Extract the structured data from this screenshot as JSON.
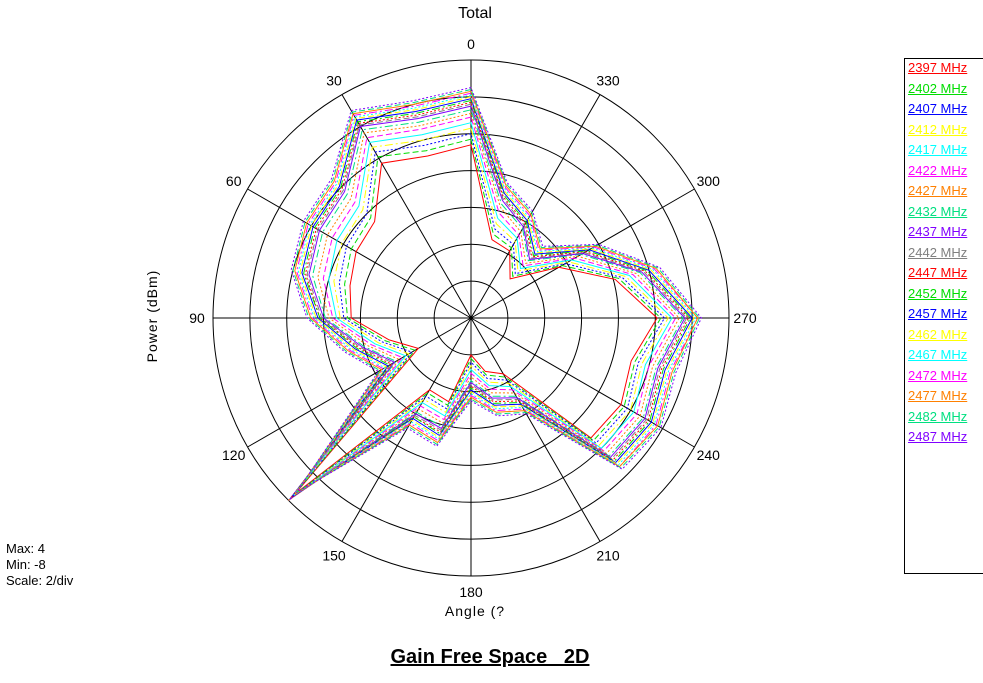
{
  "chart_data": {
    "type": "polar",
    "title": "Total",
    "xlabel": "Angle (?",
    "ylabel": "Power (dBm)",
    "rlim": [
      -8,
      4
    ],
    "r_scale_per_div": 2,
    "angle_direction": "counter-clockwise, 0 at top",
    "angle_ticks": [
      "0",
      "30",
      "60",
      "90",
      "120",
      "150",
      "180",
      "210",
      "240",
      "270",
      "300",
      "330"
    ],
    "grid": true,
    "legend_position": "right",
    "stats": {
      "max": "Max: 4",
      "min": "Min: -8",
      "scale": "Scale: 2/div"
    },
    "angles": [
      0,
      15,
      30,
      45,
      60,
      75,
      90,
      105,
      120,
      135,
      150,
      165,
      180,
      195,
      210,
      225,
      240,
      255,
      270,
      285,
      300,
      315,
      330,
      345
    ],
    "series": [
      {
        "name": "2397 MHz",
        "color": "#ff0000",
        "values": [
          -0.6,
          -0.9,
          -0.3,
          -2.6,
          -2.8,
          -3.2,
          -3.5,
          -5.4,
          -6.7,
          3.5,
          -5.5,
          -5.3,
          -8,
          -7,
          -6.5,
          -0.8,
          -0.6,
          -1.0,
          0.1,
          -1.9,
          -4.5,
          -7,
          -5.8,
          -5.6
        ]
      },
      {
        "name": "2402 MHz",
        "color": "#00dd00",
        "values": [
          -0.3,
          -0.6,
          0.1,
          -2.3,
          -2.5,
          -2.9,
          -3.3,
          -5.2,
          -6.5,
          3.7,
          -5.3,
          -5.1,
          -7.8,
          -6.8,
          -6.3,
          -0.6,
          -0.4,
          -0.8,
          0.3,
          -1.7,
          -4.3,
          -6.8,
          -5.6,
          -5.3
        ]
      },
      {
        "name": "2407 MHz",
        "color": "#0000ff",
        "values": [
          0.0,
          -0.3,
          0.4,
          -2.0,
          -2.2,
          -2.6,
          -3.1,
          -5.0,
          -6.3,
          3.8,
          -5.1,
          -4.9,
          -7.6,
          -6.6,
          -6.1,
          -0.4,
          -0.2,
          -0.6,
          0.5,
          -1.5,
          -4.1,
          -6.6,
          -5.4,
          -5.0
        ]
      },
      {
        "name": "2412 MHz",
        "color": "#ffff00",
        "values": [
          0.3,
          0.0,
          0.7,
          -1.7,
          -1.9,
          -2.3,
          -2.9,
          -4.8,
          -6.1,
          3.9,
          -4.9,
          -4.7,
          -7.4,
          -6.4,
          -5.9,
          -0.2,
          0.0,
          -0.4,
          0.7,
          -1.3,
          -3.9,
          -6.4,
          -5.2,
          -4.7
        ]
      },
      {
        "name": "2417 MHz",
        "color": "#00ffff",
        "values": [
          0.6,
          0.3,
          1.0,
          -1.4,
          -1.6,
          -2.0,
          -2.7,
          -4.6,
          -5.9,
          4.0,
          -4.7,
          -4.5,
          -7.2,
          -6.2,
          -5.7,
          0.0,
          0.2,
          -0.2,
          0.9,
          -1.1,
          -3.7,
          -6.2,
          -5.0,
          -4.4
        ]
      },
      {
        "name": "2422 MHz",
        "color": "#ff00ff",
        "values": [
          0.9,
          0.6,
          1.3,
          -1.1,
          -1.3,
          -1.7,
          -2.5,
          -4.4,
          -5.7,
          4.0,
          -4.5,
          -4.3,
          -7.0,
          -6.0,
          -5.5,
          0.2,
          0.4,
          0.0,
          1.1,
          -0.9,
          -3.5,
          -6.0,
          -4.8,
          -4.1
        ]
      },
      {
        "name": "2427 MHz",
        "color": "#ff8000",
        "values": [
          1.1,
          0.8,
          1.6,
          -0.8,
          -1.0,
          -1.4,
          -2.3,
          -4.2,
          -5.5,
          4.0,
          -4.3,
          -4.1,
          -6.8,
          -5.8,
          -5.3,
          0.4,
          0.6,
          0.2,
          1.3,
          -0.7,
          -3.3,
          -5.8,
          -4.6,
          -3.8
        ]
      },
      {
        "name": "2432 MHz",
        "color": "#00e080",
        "values": [
          1.3,
          1.0,
          1.8,
          -0.5,
          -0.7,
          -1.1,
          -2.1,
          -4.0,
          -5.3,
          3.9,
          -4.1,
          -3.9,
          -6.6,
          -5.6,
          -5.1,
          0.6,
          0.8,
          0.4,
          1.5,
          -0.5,
          -3.1,
          -5.6,
          -4.4,
          -3.6
        ]
      },
      {
        "name": "2437 MHz",
        "color": "#8000ff",
        "values": [
          1.5,
          1.2,
          2.0,
          -0.3,
          -0.5,
          -0.9,
          -2.0,
          -3.9,
          -5.2,
          3.9,
          -4.0,
          -3.8,
          -6.5,
          -5.5,
          -5.0,
          0.7,
          0.9,
          0.5,
          1.6,
          -0.4,
          -3.0,
          -5.5,
          -4.3,
          -3.4
        ]
      },
      {
        "name": "2442 MHz",
        "color": "#808080",
        "values": [
          1.6,
          1.3,
          2.1,
          -0.2,
          -0.4,
          -0.8,
          -1.9,
          -3.8,
          -5.1,
          3.8,
          -3.9,
          -3.7,
          -6.4,
          -5.4,
          -4.9,
          0.8,
          1.0,
          0.6,
          1.7,
          -0.3,
          -2.9,
          -5.4,
          -4.2,
          -3.3
        ]
      },
      {
        "name": "2447 MHz",
        "color": "#ff0000",
        "values": [
          1.7,
          1.4,
          2.2,
          -0.1,
          -0.3,
          -0.7,
          -1.8,
          -3.7,
          -5.0,
          3.8,
          -3.8,
          -3.6,
          -6.3,
          -5.3,
          -4.8,
          0.9,
          1.1,
          0.7,
          1.8,
          -0.2,
          -2.8,
          -5.3,
          -4.1,
          -3.2
        ]
      },
      {
        "name": "2452 MHz",
        "color": "#00dd00",
        "values": [
          1.8,
          1.5,
          2.3,
          0.0,
          -0.2,
          -0.6,
          -1.8,
          -3.6,
          -4.9,
          3.7,
          -3.8,
          -3.5,
          -6.2,
          -5.2,
          -4.7,
          1.0,
          1.2,
          0.8,
          1.9,
          -0.1,
          -2.7,
          -5.2,
          -4.0,
          -3.1
        ]
      },
      {
        "name": "2457 MHz",
        "color": "#0000ff",
        "values": [
          1.9,
          1.6,
          2.4,
          0.1,
          -0.1,
          -0.5,
          -1.7,
          -3.5,
          -4.8,
          3.7,
          -3.7,
          -3.4,
          -6.1,
          -5.1,
          -4.6,
          1.1,
          1.3,
          0.9,
          2.0,
          0.0,
          -2.6,
          -5.1,
          -3.9,
          -3.0
        ]
      },
      {
        "name": "2462 MHz",
        "color": "#ffff00",
        "values": [
          2.0,
          1.7,
          2.5,
          0.2,
          0.0,
          -0.4,
          -1.6,
          -3.4,
          -4.7,
          3.6,
          -3.6,
          -3.3,
          -6.0,
          -5.0,
          -4.5,
          1.2,
          1.4,
          1.0,
          2.1,
          0.1,
          -2.5,
          -5.0,
          -3.8,
          -2.9
        ]
      },
      {
        "name": "2467 MHz",
        "color": "#00ffff",
        "values": [
          2.1,
          1.8,
          2.6,
          0.3,
          0.1,
          -0.3,
          -1.5,
          -3.3,
          -4.6,
          3.6,
          -3.5,
          -3.2,
          -5.9,
          -4.9,
          -4.4,
          1.3,
          1.5,
          1.1,
          2.2,
          0.2,
          -2.4,
          -4.9,
          -3.7,
          -2.8
        ]
      },
      {
        "name": "2472 MHz",
        "color": "#ff00ff",
        "values": [
          2.2,
          1.9,
          2.7,
          0.4,
          0.2,
          -0.2,
          -1.4,
          -3.2,
          -4.5,
          3.5,
          -3.4,
          -3.1,
          -5.8,
          -4.8,
          -4.3,
          1.4,
          1.6,
          1.2,
          2.3,
          0.3,
          -2.3,
          -4.8,
          -3.6,
          -2.7
        ]
      },
      {
        "name": "2477 MHz",
        "color": "#ff8000",
        "values": [
          2.3,
          2.0,
          2.8,
          0.5,
          0.3,
          -0.1,
          -1.3,
          -3.1,
          -4.4,
          3.5,
          -3.3,
          -3.0,
          -5.7,
          -4.7,
          -4.2,
          1.4,
          1.7,
          1.3,
          2.3,
          0.4,
          -2.2,
          -4.7,
          -3.5,
          -2.6
        ]
      },
      {
        "name": "2482 MHz",
        "color": "#00e080",
        "values": [
          2.4,
          2.1,
          2.9,
          0.6,
          0.4,
          0.0,
          -1.2,
          -3.0,
          -4.3,
          3.4,
          -3.2,
          -2.9,
          -5.6,
          -4.6,
          -4.1,
          1.5,
          1.8,
          1.4,
          2.4,
          0.5,
          -2.1,
          -4.6,
          -3.4,
          -2.5
        ]
      },
      {
        "name": "2487 MHz",
        "color": "#8000ff",
        "values": [
          2.5,
          2.2,
          3.0,
          0.7,
          0.5,
          0.1,
          -1.1,
          -2.9,
          -4.2,
          3.4,
          -3.1,
          -2.8,
          -5.5,
          -4.5,
          -4.0,
          1.6,
          1.9,
          1.5,
          2.5,
          0.6,
          -2.0,
          -4.5,
          -3.3,
          -2.4
        ]
      }
    ]
  },
  "footer": {
    "title": "Gain Free Space _2D"
  }
}
